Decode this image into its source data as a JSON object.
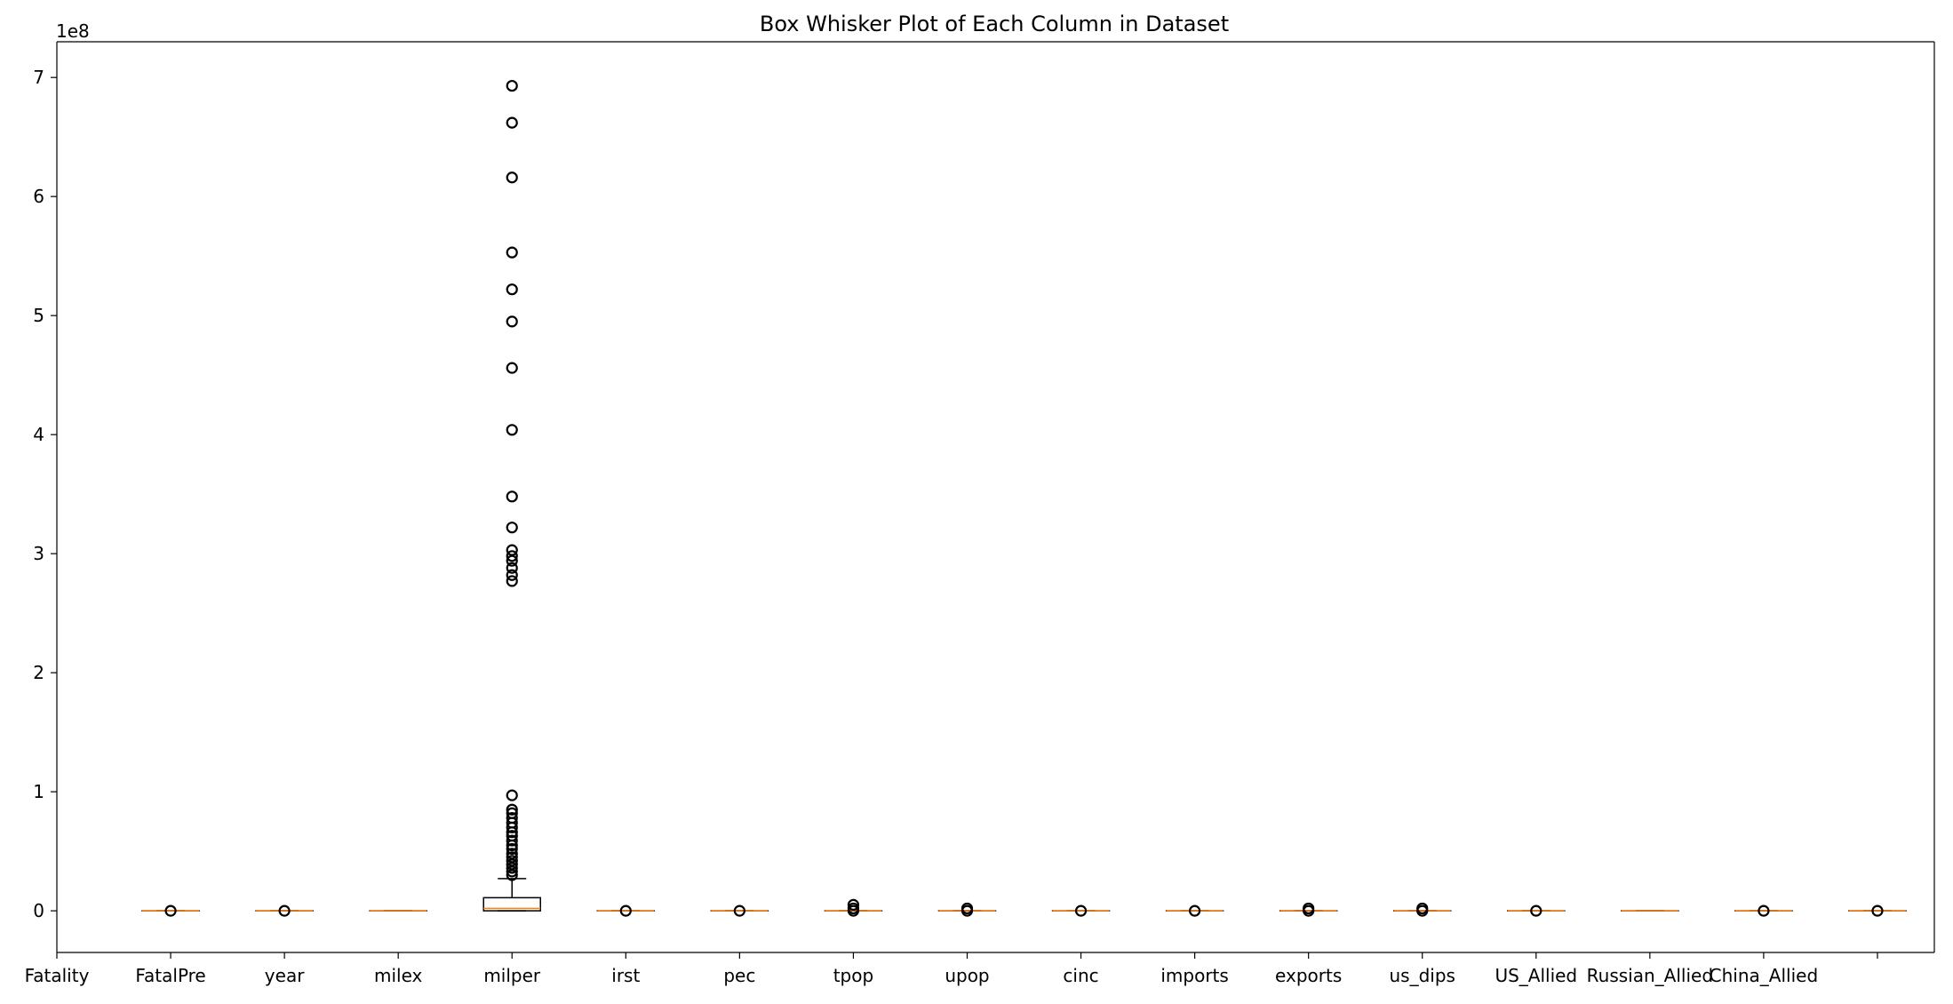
{
  "chart_data": {
    "type": "box",
    "title": "Box Whisker Plot of Each Column in Dataset",
    "y_offset_label": "1e8",
    "y_scale_factor": 100000000,
    "ylim": [
      -0.35,
      7.3
    ],
    "yticks": [
      0,
      1,
      2,
      3,
      4,
      5,
      6,
      7
    ],
    "ytick_labels": [
      "0",
      "1",
      "2",
      "3",
      "4",
      "5",
      "6",
      "7"
    ],
    "xlim": [
      0,
      16.5
    ],
    "xticks": [
      0,
      1,
      2,
      3,
      4,
      5,
      6,
      7,
      8,
      9,
      10,
      11,
      12,
      13,
      14,
      15,
      16
    ],
    "xtick_labels": [
      "Fatality",
      "FatalPre",
      "year",
      "milex",
      "milper",
      "irst",
      "pec",
      "tpop",
      "upop",
      "cinc",
      "imports",
      "exports",
      "us_dips",
      "US_Allied",
      "Russian_Allied",
      "China_Allied",
      ""
    ],
    "grid": false,
    "colors": {
      "box": "#000000",
      "median": "#ff7f0e",
      "axes": "#000000"
    },
    "boxes": [
      {
        "label": "FatalPre",
        "x": 1,
        "q1": 0,
        "median": 0,
        "q3": 0,
        "whislo": 0,
        "whishi": 0,
        "fliers": [
          0
        ]
      },
      {
        "label": "year",
        "x": 2,
        "q1": 0,
        "median": 0,
        "q3": 0,
        "whislo": 0,
        "whishi": 0,
        "fliers": [
          0
        ]
      },
      {
        "label": "milex",
        "x": 3,
        "q1": 0,
        "median": 0,
        "q3": 0,
        "whislo": 0,
        "whishi": 0,
        "fliers": []
      },
      {
        "label": "milper",
        "x": 4,
        "q1": 0,
        "median": 0.02,
        "q3": 0.11,
        "whislo": 0,
        "whishi": 0.27,
        "fliers": [
          6.93,
          6.62,
          6.16,
          5.53,
          5.22,
          4.95,
          4.56,
          4.04,
          3.48,
          3.22,
          3.03,
          2.98,
          2.94,
          2.88,
          2.82,
          2.77,
          0.97,
          0.85,
          0.82,
          0.78,
          0.74,
          0.7,
          0.66,
          0.63,
          0.59,
          0.55,
          0.52,
          0.48,
          0.45,
          0.42,
          0.39,
          0.36,
          0.33,
          0.3
        ]
      },
      {
        "label": "irst",
        "x": 5,
        "q1": 0,
        "median": 0,
        "q3": 0,
        "whislo": 0,
        "whishi": 0,
        "fliers": [
          0
        ]
      },
      {
        "label": "pec",
        "x": 6,
        "q1": 0,
        "median": 0,
        "q3": 0,
        "whislo": 0,
        "whishi": 0,
        "fliers": [
          0
        ]
      },
      {
        "label": "tpop",
        "x": 7,
        "q1": 0,
        "median": 0,
        "q3": 0,
        "whislo": 0,
        "whishi": 0,
        "fliers": [
          0,
          0.02,
          0.05
        ]
      },
      {
        "label": "upop",
        "x": 8,
        "q1": 0,
        "median": 0,
        "q3": 0,
        "whislo": 0,
        "whishi": 0,
        "fliers": [
          0,
          0.02
        ]
      },
      {
        "label": "cinc",
        "x": 9,
        "q1": 0,
        "median": 0,
        "q3": 0,
        "whislo": 0,
        "whishi": 0,
        "fliers": [
          0
        ]
      },
      {
        "label": "imports",
        "x": 10,
        "q1": 0,
        "median": 0,
        "q3": 0,
        "whislo": 0,
        "whishi": 0,
        "fliers": [
          0
        ]
      },
      {
        "label": "exports",
        "x": 11,
        "q1": 0,
        "median": 0,
        "q3": 0,
        "whislo": 0,
        "whishi": 0,
        "fliers": [
          0,
          0.02
        ]
      },
      {
        "label": "us_dips",
        "x": 12,
        "q1": 0,
        "median": 0,
        "q3": 0,
        "whislo": 0,
        "whishi": 0,
        "fliers": [
          0,
          0.02
        ]
      },
      {
        "label": "US_Allied",
        "x": 13,
        "q1": 0,
        "median": 0,
        "q3": 0,
        "whislo": 0,
        "whishi": 0,
        "fliers": [
          0
        ]
      },
      {
        "label": "Russian_Allied",
        "x": 14,
        "q1": 0,
        "median": 0,
        "q3": 0,
        "whislo": 0,
        "whishi": 0,
        "fliers": []
      },
      {
        "label": "China_Allied",
        "x": 15,
        "q1": 0,
        "median": 0,
        "q3": 0,
        "whislo": 0,
        "whishi": 0,
        "fliers": [
          0
        ]
      },
      {
        "label": "",
        "x": 16,
        "q1": 0,
        "median": 0,
        "q3": 0,
        "whislo": 0,
        "whishi": 0,
        "fliers": [
          0
        ]
      }
    ]
  }
}
